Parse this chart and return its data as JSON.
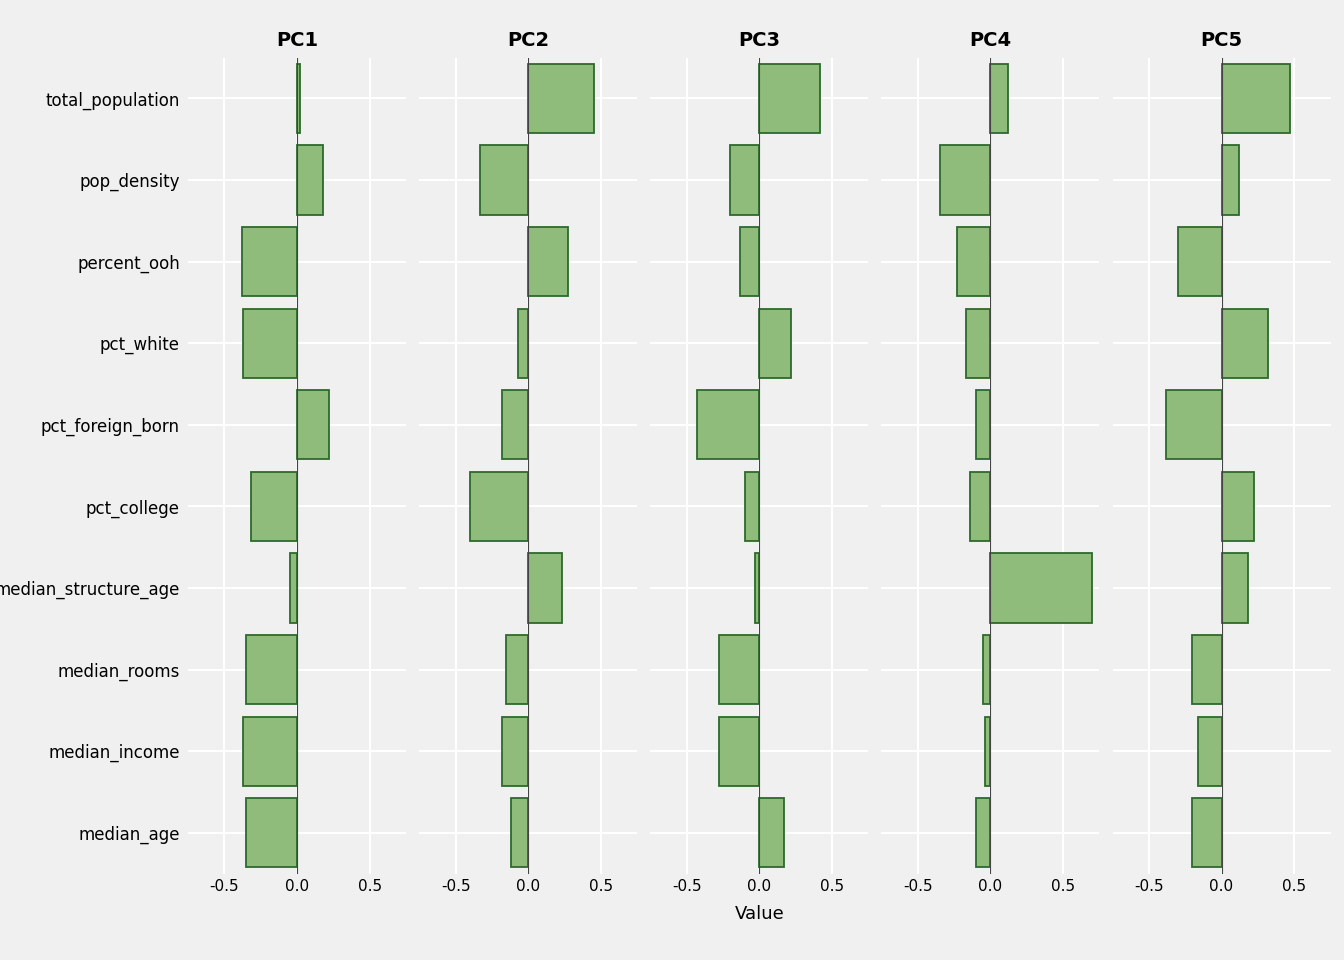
{
  "variables": [
    "total_population",
    "pop_density",
    "percent_ooh",
    "pct_white",
    "pct_foreign_born",
    "pct_college",
    "median_structure_age",
    "median_rooms",
    "median_income",
    "median_age"
  ],
  "pc_labels": [
    "PC1",
    "PC2",
    "PC3",
    "PC4",
    "PC5"
  ],
  "loadings": {
    "PC1": [
      0.02,
      0.18,
      -0.38,
      -0.37,
      0.22,
      -0.32,
      -0.05,
      -0.35,
      -0.37,
      -0.35
    ],
    "PC2": [
      0.45,
      -0.33,
      0.27,
      -0.07,
      -0.18,
      -0.4,
      0.23,
      -0.15,
      -0.18,
      -0.12
    ],
    "PC3": [
      0.42,
      -0.2,
      -0.13,
      0.22,
      -0.43,
      -0.1,
      -0.03,
      -0.28,
      -0.28,
      0.17
    ],
    "PC4": [
      0.12,
      -0.35,
      -0.23,
      -0.17,
      -0.1,
      -0.14,
      0.7,
      -0.05,
      -0.04,
      -0.1
    ],
    "PC5": [
      0.47,
      0.12,
      -0.3,
      0.32,
      -0.38,
      0.22,
      0.18,
      -0.2,
      -0.16,
      -0.2
    ]
  },
  "bar_fill_color": "#8fbc7a",
  "bar_edge_color": "#2d6a2d",
  "background_color": "#f0f0f0",
  "panel_background": "#f0f0f0",
  "grid_color": "#ffffff",
  "xlim": [
    -0.75,
    0.75
  ],
  "xticks": [
    -0.5,
    0.0,
    0.5
  ],
  "xtick_labels": [
    "-0.5",
    "0.0",
    "0.5"
  ],
  "xlabel": "Value",
  "bar_height": 0.85,
  "figsize": [
    13.44,
    9.6
  ],
  "dpi": 100,
  "title_fontsize": 14,
  "ylabel_fontsize": 12,
  "xlabel_fontsize": 13,
  "tick_fontsize": 11
}
